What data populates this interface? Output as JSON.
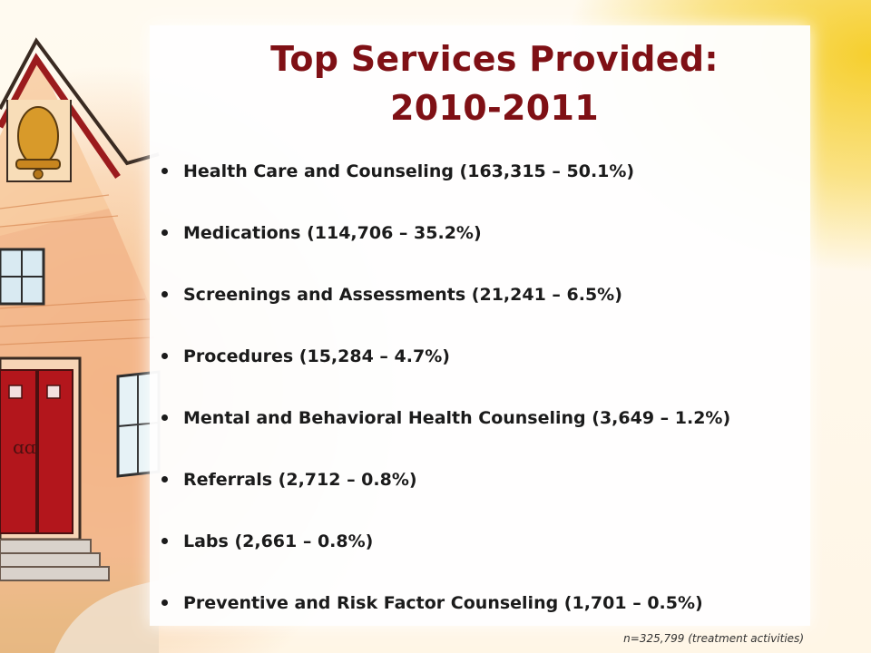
{
  "slide": {
    "title_line1": "Top Services Provided:",
    "title_line2": "2010-2011",
    "bullets": [
      "Health Care and Counseling (163,315 – 50.1%)",
      "Medications (114,706 – 35.2%)",
      "Screenings and Assessments (21,241 – 6.5%)",
      "Procedures (15,284 – 4.7%)",
      "Mental and Behavioral Health Counseling (3,649 – 1.2%)",
      "Referrals (2,712 – 0.8%)",
      "Labs (2,661 – 0.8%)",
      "Preventive and Risk Factor Counseling (1,701 – 0.5%)"
    ],
    "footnote": "n=325,799 (treatment activities)"
  },
  "colors": {
    "title": "#7f1015",
    "text": "#1b1b1b",
    "accent_yellow": "#f6cf2e",
    "door_red": "#b3161c"
  },
  "decor": {
    "illustration": "schoolhouse-with-bell"
  }
}
